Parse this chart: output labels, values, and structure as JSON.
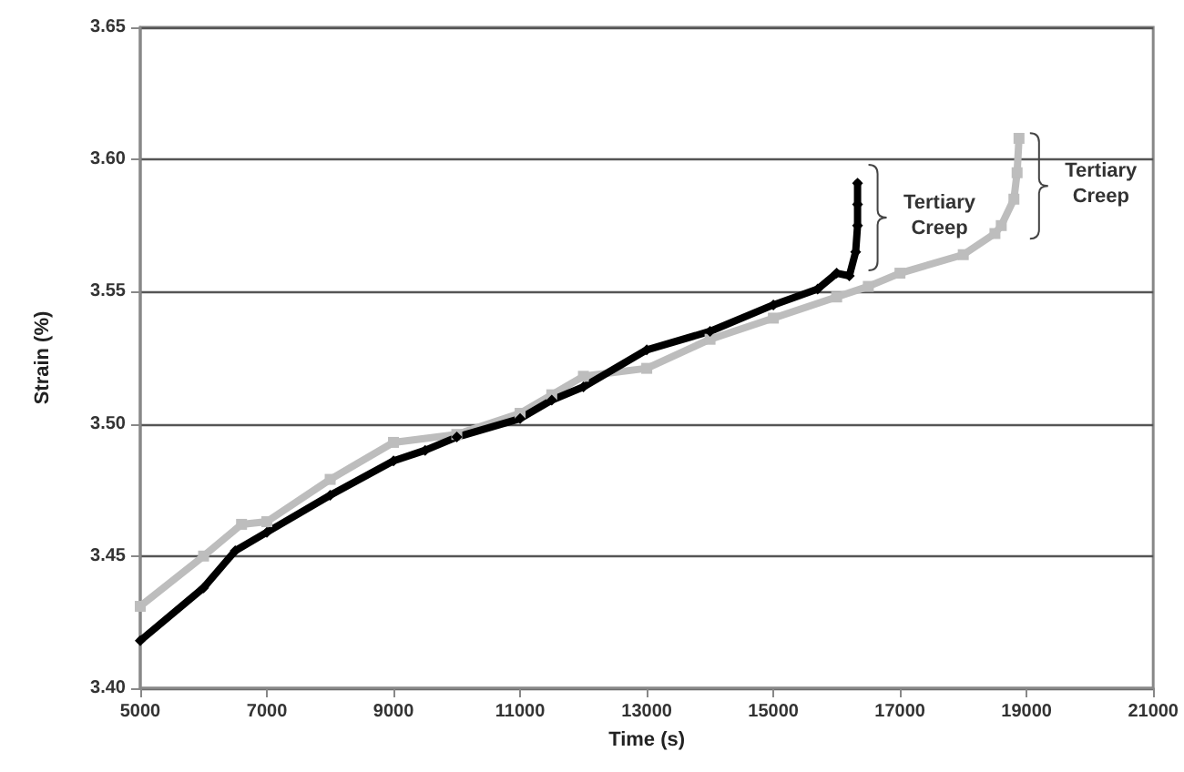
{
  "chart_data": {
    "type": "line",
    "xlabel": "Time (s)",
    "ylabel": "Strain (%)",
    "xlim": [
      5000,
      21000
    ],
    "xticks": [
      5000,
      7000,
      9000,
      11000,
      13000,
      15000,
      17000,
      19000,
      21000
    ],
    "ylim": [
      3.4,
      3.65
    ],
    "yticks": [
      {
        "value": 3.4,
        "label": "3.40"
      },
      3.45,
      {
        "value": 3.5,
        "label": "3.50"
      },
      3.55,
      {
        "value": 3.6,
        "label": "3.60"
      },
      3.65
    ],
    "grid": "y",
    "series": [
      {
        "color": "#bdbdbd",
        "marker": "square",
        "x": [
          5000,
          6000,
          6600,
          7000,
          8000,
          9000,
          10000,
          11000,
          11500,
          12000,
          13000,
          14000,
          15000,
          16000,
          16500,
          17000,
          18000,
          18500,
          18600,
          18800,
          18850,
          18880
        ],
        "values": [
          3.431,
          3.45,
          3.462,
          3.463,
          3.479,
          3.493,
          3.496,
          3.504,
          3.511,
          3.518,
          3.521,
          3.532,
          3.54,
          3.548,
          3.552,
          3.557,
          3.564,
          3.572,
          3.575,
          3.585,
          3.595,
          3.608
        ]
      },
      {
        "color": "#000000",
        "marker": "diamond",
        "x": [
          5000,
          6000,
          6500,
          7000,
          8000,
          9000,
          9500,
          10000,
          11000,
          11500,
          12000,
          13000,
          14000,
          15000,
          15700,
          16000,
          16200,
          16300,
          16330,
          16330,
          16330
        ],
        "values": [
          3.418,
          3.438,
          3.452,
          3.459,
          3.473,
          3.486,
          3.49,
          3.495,
          3.502,
          3.509,
          3.514,
          3.528,
          3.535,
          3.545,
          3.551,
          3.557,
          3.556,
          3.565,
          3.575,
          3.583,
          3.591
        ]
      }
    ],
    "annotations": [
      {
        "text": "Tertiary\nCreep",
        "x": 16330,
        "y": 3.578
      },
      {
        "text": "Tertiary\nCreep",
        "x": 18880,
        "y": 3.59
      }
    ]
  }
}
